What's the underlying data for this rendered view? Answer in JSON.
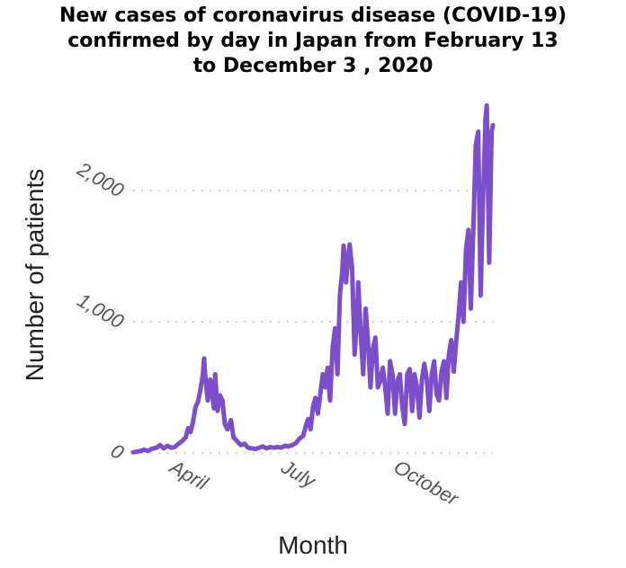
{
  "chart_data": {
    "type": "line",
    "title": "New cases of coronavirus disease (COVID-19)\nconfirmed by day in Japan from February 13\nto December 3 , 2020",
    "xlabel": "Month",
    "ylabel": "Number of patients",
    "x_start": "2020-02-13",
    "x_end": "2020-12-03",
    "xticks": [
      {
        "label": "April",
        "date": "2020-04-01"
      },
      {
        "label": "July",
        "date": "2020-07-01"
      },
      {
        "label": "October",
        "date": "2020-10-01"
      }
    ],
    "yticks": [
      {
        "label": "0",
        "value": 0
      },
      {
        "label": "1,000",
        "value": 1000
      },
      {
        "label": "2,000",
        "value": 2000
      }
    ],
    "ylim": [
      0,
      2700
    ],
    "grid": "horizontal-dotted",
    "color": "#7b4fc9",
    "series": [
      {
        "points": [
          [
            "2020-02-13",
            5
          ],
          [
            "2020-02-16",
            10
          ],
          [
            "2020-02-19",
            15
          ],
          [
            "2020-02-22",
            25
          ],
          [
            "2020-02-25",
            15
          ],
          [
            "2020-02-28",
            30
          ],
          [
            "2020-03-03",
            40
          ],
          [
            "2020-03-06",
            60
          ],
          [
            "2020-03-09",
            35
          ],
          [
            "2020-03-12",
            55
          ],
          [
            "2020-03-15",
            40
          ],
          [
            "2020-03-18",
            45
          ],
          [
            "2020-03-21",
            70
          ],
          [
            "2020-03-24",
            90
          ],
          [
            "2020-03-27",
            120
          ],
          [
            "2020-03-29",
            190
          ],
          [
            "2020-03-31",
            160
          ],
          [
            "2020-04-02",
            240
          ],
          [
            "2020-04-04",
            350
          ],
          [
            "2020-04-06",
            390
          ],
          [
            "2020-04-08",
            480
          ],
          [
            "2020-04-10",
            600
          ],
          [
            "2020-04-11",
            720
          ],
          [
            "2020-04-12",
            580
          ],
          [
            "2020-04-14",
            400
          ],
          [
            "2020-04-16",
            560
          ],
          [
            "2020-04-17",
            500
          ],
          [
            "2020-04-19",
            340
          ],
          [
            "2020-04-20",
            600
          ],
          [
            "2020-04-22",
            320
          ],
          [
            "2020-04-24",
            440
          ],
          [
            "2020-04-26",
            400
          ],
          [
            "2020-04-28",
            220
          ],
          [
            "2020-04-30",
            180
          ],
          [
            "2020-05-03",
            250
          ],
          [
            "2020-05-05",
            120
          ],
          [
            "2020-05-08",
            90
          ],
          [
            "2020-05-11",
            60
          ],
          [
            "2020-05-14",
            70
          ],
          [
            "2020-05-17",
            40
          ],
          [
            "2020-05-20",
            35
          ],
          [
            "2020-05-23",
            30
          ],
          [
            "2020-05-26",
            40
          ],
          [
            "2020-05-29",
            50
          ],
          [
            "2020-06-01",
            35
          ],
          [
            "2020-06-04",
            45
          ],
          [
            "2020-06-07",
            40
          ],
          [
            "2020-06-10",
            45
          ],
          [
            "2020-06-13",
            40
          ],
          [
            "2020-06-16",
            55
          ],
          [
            "2020-06-19",
            50
          ],
          [
            "2020-06-22",
            60
          ],
          [
            "2020-06-25",
            75
          ],
          [
            "2020-06-28",
            110
          ],
          [
            "2020-07-01",
            130
          ],
          [
            "2020-07-03",
            200
          ],
          [
            "2020-07-05",
            260
          ],
          [
            "2020-07-07",
            180
          ],
          [
            "2020-07-09",
            350
          ],
          [
            "2020-07-11",
            420
          ],
          [
            "2020-07-13",
            300
          ],
          [
            "2020-07-15",
            450
          ],
          [
            "2020-07-17",
            600
          ],
          [
            "2020-07-19",
            500
          ],
          [
            "2020-07-21",
            650
          ],
          [
            "2020-07-23",
            400
          ],
          [
            "2020-07-25",
            800
          ],
          [
            "2020-07-27",
            950
          ],
          [
            "2020-07-29",
            600
          ],
          [
            "2020-07-31",
            1200
          ],
          [
            "2020-08-02",
            1400
          ],
          [
            "2020-08-03",
            1580
          ],
          [
            "2020-08-05",
            1300
          ],
          [
            "2020-08-07",
            1520
          ],
          [
            "2020-08-08",
            1590
          ],
          [
            "2020-08-10",
            1400
          ],
          [
            "2020-08-12",
            750
          ],
          [
            "2020-08-14",
            1050
          ],
          [
            "2020-08-15",
            1300
          ],
          [
            "2020-08-17",
            900
          ],
          [
            "2020-08-19",
            600
          ],
          [
            "2020-08-21",
            1100
          ],
          [
            "2020-08-23",
            850
          ],
          [
            "2020-08-25",
            500
          ],
          [
            "2020-08-27",
            800
          ],
          [
            "2020-08-29",
            880
          ],
          [
            "2020-08-31",
            500
          ],
          [
            "2020-09-02",
            550
          ],
          [
            "2020-09-04",
            650
          ],
          [
            "2020-09-06",
            500
          ],
          [
            "2020-09-08",
            300
          ],
          [
            "2020-09-10",
            700
          ],
          [
            "2020-09-12",
            600
          ],
          [
            "2020-09-14",
            300
          ],
          [
            "2020-09-16",
            550
          ],
          [
            "2020-09-18",
            600
          ],
          [
            "2020-09-20",
            350
          ],
          [
            "2020-09-22",
            220
          ],
          [
            "2020-09-24",
            600
          ],
          [
            "2020-09-26",
            640
          ],
          [
            "2020-09-28",
            320
          ],
          [
            "2020-09-30",
            600
          ],
          [
            "2020-10-02",
            500
          ],
          [
            "2020-10-04",
            270
          ],
          [
            "2020-10-06",
            560
          ],
          [
            "2020-10-08",
            680
          ],
          [
            "2020-10-10",
            560
          ],
          [
            "2020-10-12",
            320
          ],
          [
            "2020-10-14",
            600
          ],
          [
            "2020-10-16",
            700
          ],
          [
            "2020-10-18",
            450
          ],
          [
            "2020-10-20",
            400
          ],
          [
            "2020-10-22",
            620
          ],
          [
            "2020-10-24",
            700
          ],
          [
            "2020-10-26",
            420
          ],
          [
            "2020-10-28",
            750
          ],
          [
            "2020-10-30",
            860
          ],
          [
            "2020-11-01",
            620
          ],
          [
            "2020-11-03",
            850
          ],
          [
            "2020-11-05",
            1050
          ],
          [
            "2020-11-07",
            1300
          ],
          [
            "2020-11-09",
            1000
          ],
          [
            "2020-11-11",
            1550
          ],
          [
            "2020-11-13",
            1700
          ],
          [
            "2020-11-15",
            1100
          ],
          [
            "2020-11-17",
            1700
          ],
          [
            "2020-11-19",
            2350
          ],
          [
            "2020-11-21",
            2450
          ],
          [
            "2020-11-23",
            1200
          ],
          [
            "2020-11-25",
            1950
          ],
          [
            "2020-11-27",
            2550
          ],
          [
            "2020-11-28",
            2650
          ],
          [
            "2020-11-30",
            1450
          ],
          [
            "2020-12-02",
            2450
          ],
          [
            "2020-12-03",
            2500
          ]
        ]
      }
    ]
  }
}
